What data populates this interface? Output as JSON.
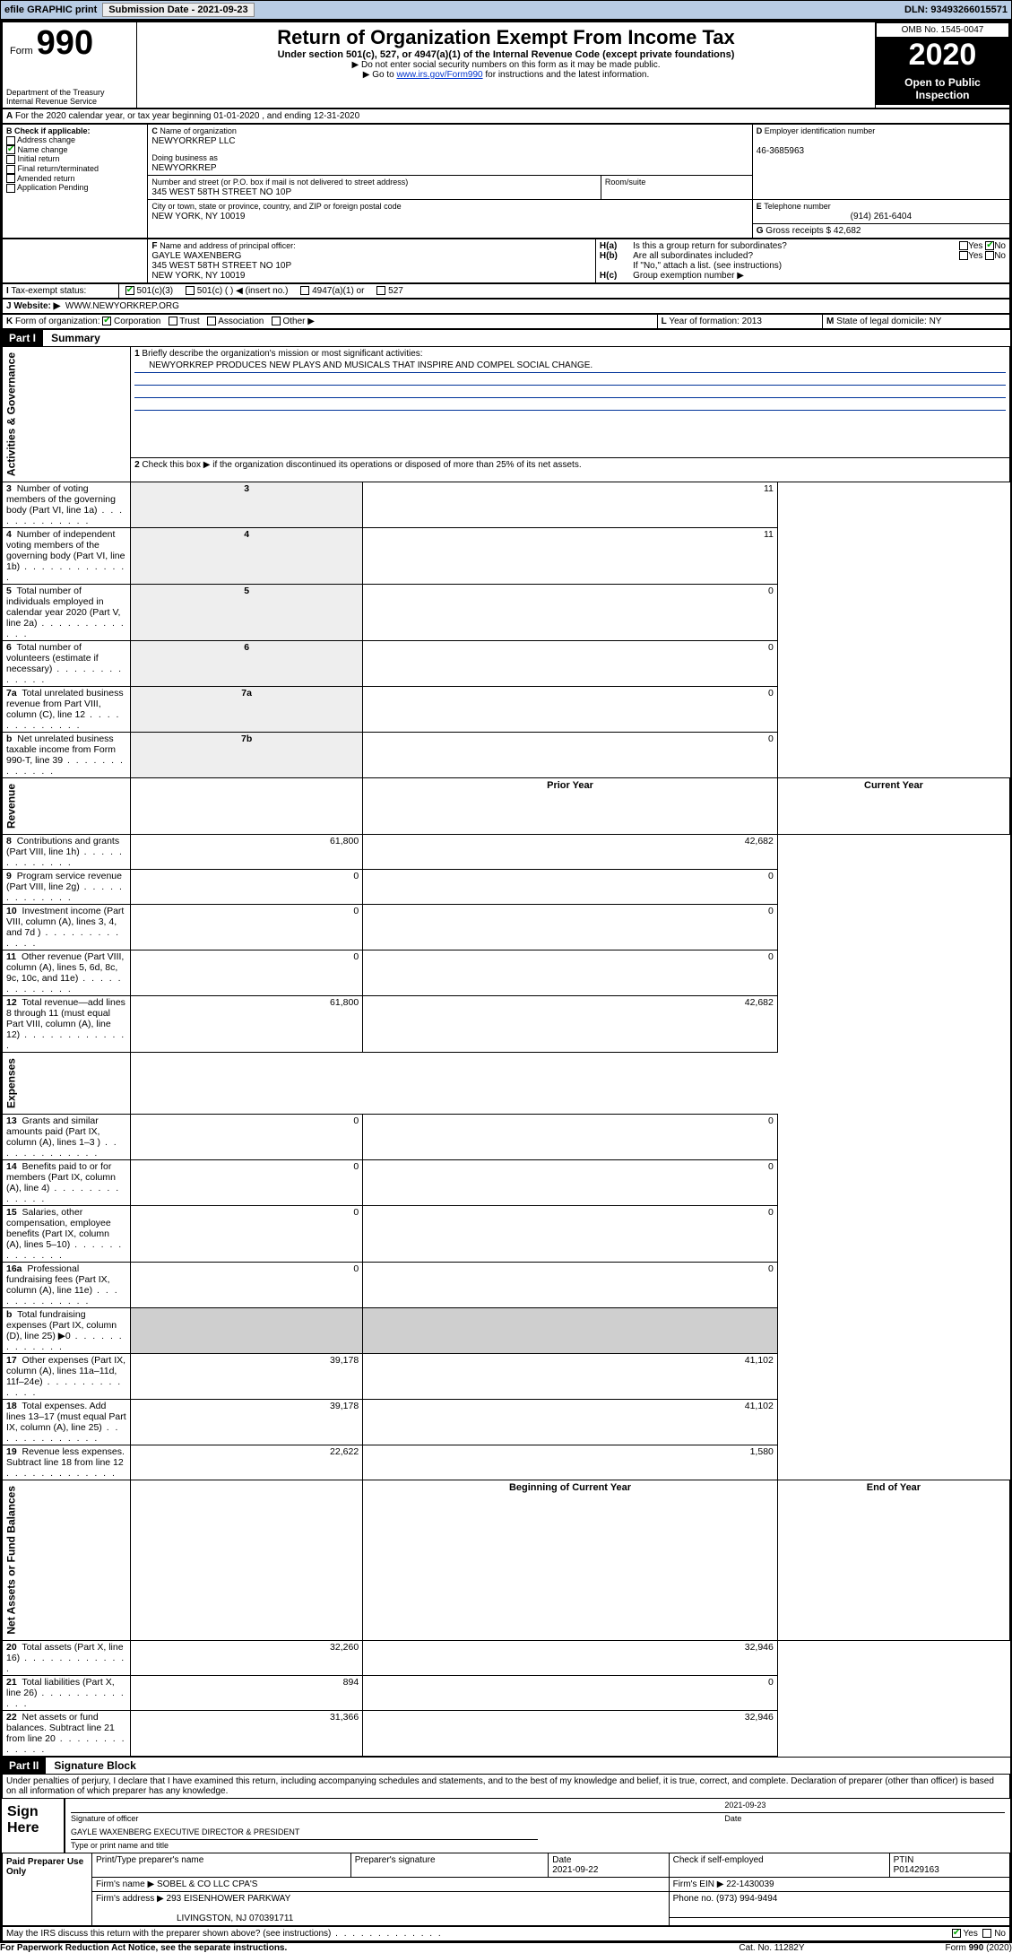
{
  "toolbar": {
    "efile_label": "efile GRAPHIC print",
    "submission_label": "Submission Date - 2021-09-23",
    "dln_label": "DLN: 93493266015571"
  },
  "header": {
    "form_word": "Form",
    "form_num": "990",
    "dept1": "Department of the Treasury",
    "dept2": "Internal Revenue Service",
    "title": "Return of Organization Exempt From Income Tax",
    "subtitle": "Under section 501(c), 527, or 4947(a)(1) of the Internal Revenue Code (except private foundations)",
    "note1": "Do not enter social security numbers on this form as it may be made public.",
    "note2_pre": "Go to ",
    "note2_link": "www.irs.gov/Form990",
    "note2_post": " for instructions and the latest information.",
    "omb": "OMB No. 1545-0047",
    "year": "2020",
    "open": "Open to Public Inspection"
  },
  "sectionA": {
    "line": "For the 2020 calendar year, or tax year beginning 01-01-2020   , and ending 12-31-2020"
  },
  "sectionB": {
    "label": "Check if applicable:",
    "opts": [
      "Address change",
      "Name change",
      "Initial return",
      "Final return/terminated",
      "Amended return",
      "Application Pending"
    ],
    "checked_idx": 1
  },
  "sectionC": {
    "name_lbl": "Name of organization",
    "name": "NEWYORKREP LLC",
    "dba_lbl": "Doing business as",
    "dba": "NEWYORKREP",
    "street_lbl": "Number and street (or P.O. box if mail is not delivered to street address)",
    "room_lbl": "Room/suite",
    "street": "345 WEST 58TH STREET NO 10P",
    "city_lbl": "City or town, state or province, country, and ZIP or foreign postal code",
    "city": "NEW YORK, NY  10019"
  },
  "sectionD": {
    "lbl": "Employer identification number",
    "val": "46-3685963"
  },
  "sectionE": {
    "lbl": "Telephone number",
    "val": "(914) 261-6404"
  },
  "sectionG": {
    "lbl": "Gross receipts $",
    "val": "42,682"
  },
  "sectionF": {
    "lbl": "Name and address of principal officer:",
    "line1": "GAYLE WAXENBERG",
    "line2": "345 WEST 58TH STREET NO 10P",
    "line3": "NEW YORK, NY  10019"
  },
  "sectionH": {
    "ha": "Is this a group return for subordinates?",
    "hb": "Are all subordinates included?",
    "hb_note": "If \"No,\" attach a list. (see instructions)",
    "hc": "Group exemption number ▶",
    "yes": "Yes",
    "no": "No"
  },
  "sectionI": {
    "lbl": "Tax-exempt status:",
    "opts": [
      "501(c)(3)",
      "501(c) (  ) ◀ (insert no.)",
      "4947(a)(1) or",
      "527"
    ]
  },
  "sectionJ": {
    "lbl": "Website: ▶",
    "val": "WWW.NEWYORKREP.ORG"
  },
  "sectionK": {
    "lbl": "Form of organization:",
    "opts": [
      "Corporation",
      "Trust",
      "Association",
      "Other ▶"
    ]
  },
  "sectionL": {
    "lbl": "Year of formation:",
    "val": "2013"
  },
  "sectionM": {
    "lbl": "State of legal domicile:",
    "val": "NY"
  },
  "part1": {
    "hdr": "Part I",
    "title": "Summary",
    "q1_lbl": "Briefly describe the organization's mission or most significant activities:",
    "q1_val": "NEWYORKREP PRODUCES NEW PLAYS AND MUSICALS THAT INSPIRE AND COMPEL SOCIAL CHANGE.",
    "q2": "Check this box ▶         if the organization discontinued its operations or disposed of more than 25% of its net assets.",
    "gov_rows": [
      {
        "n": "3",
        "t": "Number of voting members of the governing body (Part VI, line 1a)",
        "box": "3",
        "v": "11"
      },
      {
        "n": "4",
        "t": "Number of independent voting members of the governing body (Part VI, line 1b)",
        "box": "4",
        "v": "11"
      },
      {
        "n": "5",
        "t": "Total number of individuals employed in calendar year 2020 (Part V, line 2a)",
        "box": "5",
        "v": "0"
      },
      {
        "n": "6",
        "t": "Total number of volunteers (estimate if necessary)",
        "box": "6",
        "v": "0"
      },
      {
        "n": "7a",
        "t": "Total unrelated business revenue from Part VIII, column (C), line 12",
        "box": "7a",
        "v": "0"
      },
      {
        "n": "b",
        "t": "Net unrelated business taxable income from Form 990-T, line 39",
        "box": "7b",
        "v": "0"
      }
    ],
    "col_prior": "Prior Year",
    "col_curr": "Current Year",
    "rev_rows": [
      {
        "n": "8",
        "t": "Contributions and grants (Part VIII, line 1h)",
        "p": "61,800",
        "c": "42,682"
      },
      {
        "n": "9",
        "t": "Program service revenue (Part VIII, line 2g)",
        "p": "0",
        "c": "0"
      },
      {
        "n": "10",
        "t": "Investment income (Part VIII, column (A), lines 3, 4, and 7d )",
        "p": "0",
        "c": "0"
      },
      {
        "n": "11",
        "t": "Other revenue (Part VIII, column (A), lines 5, 6d, 8c, 9c, 10c, and 11e)",
        "p": "0",
        "c": "0"
      },
      {
        "n": "12",
        "t": "Total revenue—add lines 8 through 11 (must equal Part VIII, column (A), line 12)",
        "p": "61,800",
        "c": "42,682"
      }
    ],
    "exp_rows": [
      {
        "n": "13",
        "t": "Grants and similar amounts paid (Part IX, column (A), lines 1–3 )",
        "p": "0",
        "c": "0"
      },
      {
        "n": "14",
        "t": "Benefits paid to or for members (Part IX, column (A), line 4)",
        "p": "0",
        "c": "0"
      },
      {
        "n": "15",
        "t": "Salaries, other compensation, employee benefits (Part IX, column (A), lines 5–10)",
        "p": "0",
        "c": "0"
      },
      {
        "n": "16a",
        "t": "Professional fundraising fees (Part IX, column (A), line 11e)",
        "p": "0",
        "c": "0"
      },
      {
        "n": "b",
        "t": "Total fundraising expenses (Part IX, column (D), line 25) ▶0",
        "p": "",
        "c": "",
        "shade": true
      },
      {
        "n": "17",
        "t": "Other expenses (Part IX, column (A), lines 11a–11d, 11f–24e)",
        "p": "39,178",
        "c": "41,102"
      },
      {
        "n": "18",
        "t": "Total expenses. Add lines 13–17 (must equal Part IX, column (A), line 25)",
        "p": "39,178",
        "c": "41,102"
      },
      {
        "n": "19",
        "t": "Revenue less expenses. Subtract line 18 from line 12",
        "p": "22,622",
        "c": "1,580"
      }
    ],
    "col_begin": "Beginning of Current Year",
    "col_end": "End of Year",
    "net_rows": [
      {
        "n": "20",
        "t": "Total assets (Part X, line 16)",
        "p": "32,260",
        "c": "32,946"
      },
      {
        "n": "21",
        "t": "Total liabilities (Part X, line 26)",
        "p": "894",
        "c": "0"
      },
      {
        "n": "22",
        "t": "Net assets or fund balances. Subtract line 21 from line 20",
        "p": "31,366",
        "c": "32,946"
      }
    ],
    "side_labels": [
      "Activities & Governance",
      "Revenue",
      "Expenses",
      "Net Assets or Fund Balances"
    ]
  },
  "part2": {
    "hdr": "Part II",
    "title": "Signature Block",
    "decl": "Under penalties of perjury, I declare that I have examined this return, including accompanying schedules and statements, and to the best of my knowledge and belief, it is true, correct, and complete. Declaration of preparer (other than officer) is based on all information of which preparer has any knowledge.",
    "sign_here": "Sign Here",
    "sig_officer": "Signature of officer",
    "sig_date": "2021-09-23",
    "date_lbl": "Date",
    "officer_name": "GAYLE WAXENBERG  EXECUTIVE DIRECTOR & PRESIDENT",
    "type_name": "Type or print name and title",
    "paid": "Paid Preparer Use Only",
    "prep_name_lbl": "Print/Type preparer's name",
    "prep_sig_lbl": "Preparer's signature",
    "prep_date_lbl": "Date",
    "prep_date": "2021-09-22",
    "check_self": "Check         if self-employed",
    "ptin_lbl": "PTIN",
    "ptin": "P01429163",
    "firm_name_lbl": "Firm's name    ▶",
    "firm_name": "SOBEL & CO LLC CPA'S",
    "firm_ein_lbl": "Firm's EIN ▶",
    "firm_ein": "22-1430039",
    "firm_addr_lbl": "Firm's address ▶",
    "firm_addr1": "293 EISENHOWER PARKWAY",
    "firm_addr2": "LIVINGSTON, NJ  070391711",
    "phone_lbl": "Phone no.",
    "phone": "(973) 994-9494",
    "discuss": "May the IRS discuss this return with the preparer shown above? (see instructions)"
  },
  "footer": {
    "pra": "For Paperwork Reduction Act Notice, see the separate instructions.",
    "cat": "Cat. No. 11282Y",
    "form": "Form 990 (2020)"
  },
  "colors": {
    "toolbar_bg": "#b8cce4",
    "link": "#0033cc"
  }
}
